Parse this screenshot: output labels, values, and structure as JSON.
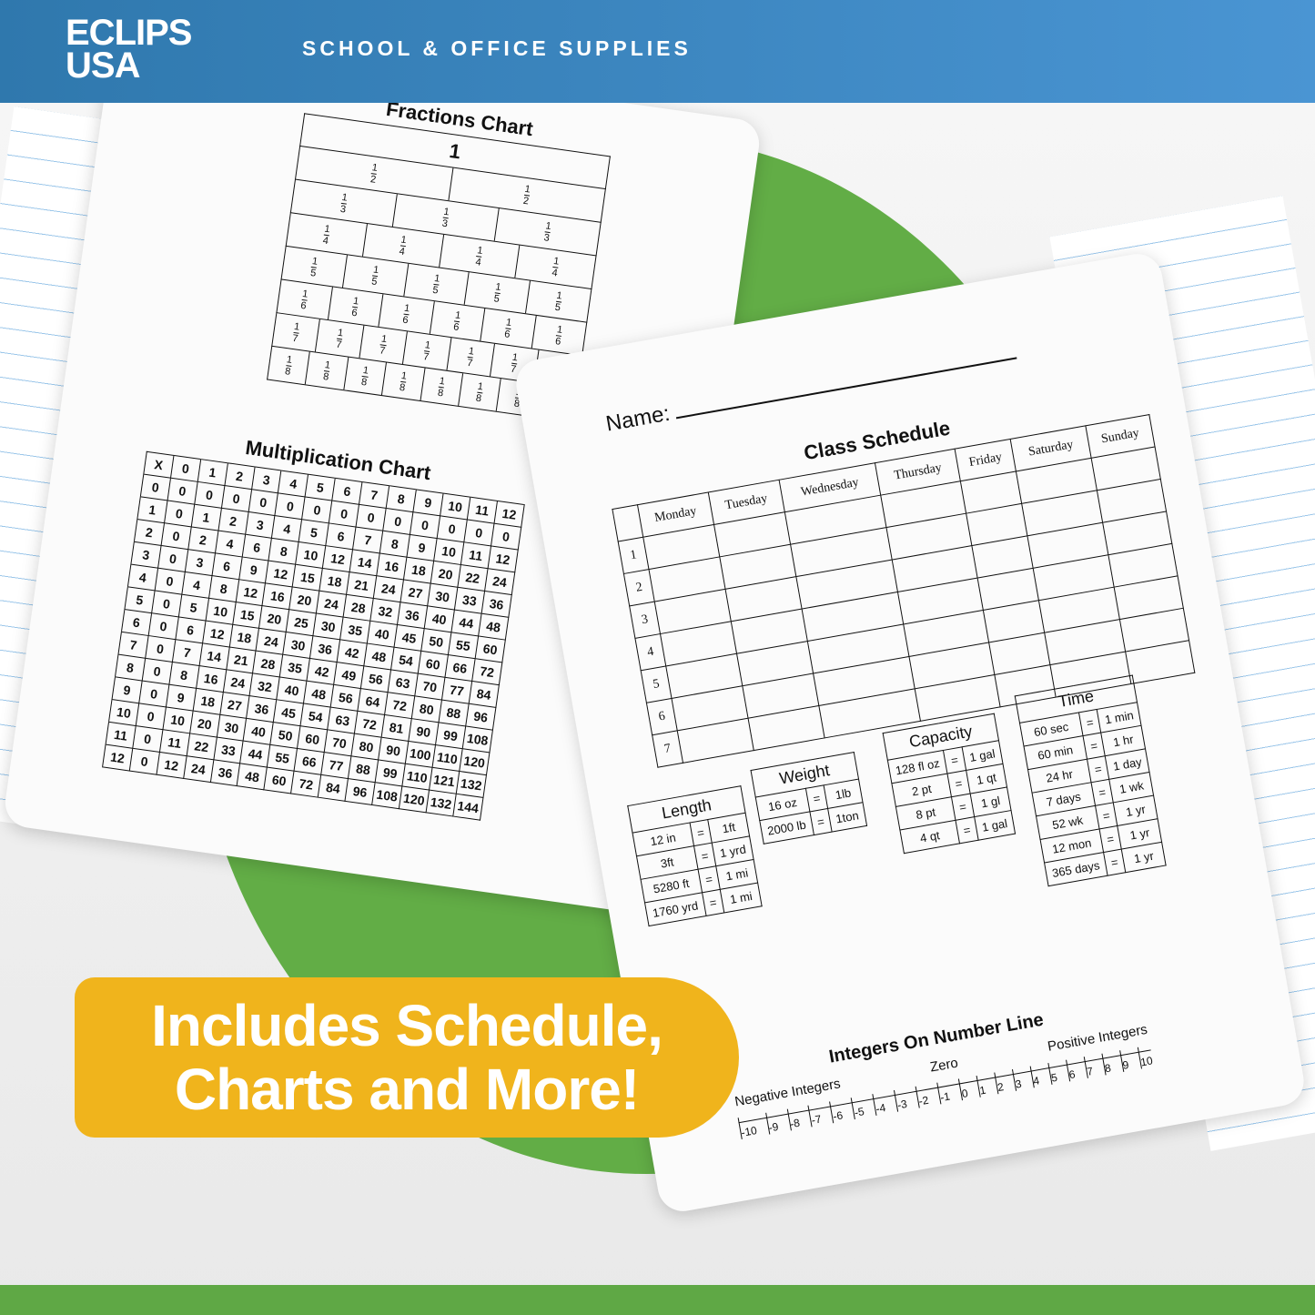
{
  "header": {
    "logo_line1": "ECLIPS",
    "logo_line2": "USA",
    "tagline": "SCHOOL & OFFICE SUPPLIES",
    "color": "#3a86c2"
  },
  "colors": {
    "green": "#62ad46",
    "yellow": "#f0b41c"
  },
  "fractions": {
    "title": "Fractions Chart",
    "whole": "1",
    "denominators": [
      2,
      3,
      4,
      5,
      6,
      7,
      8
    ]
  },
  "multiplication": {
    "title": "Multiplication Chart",
    "corner": "X",
    "range": [
      0,
      12
    ]
  },
  "name_label": "Name:",
  "schedule": {
    "title": "Class Schedule",
    "days": [
      "Monday",
      "Tuesday",
      "Wednesday",
      "Thursday",
      "Friday",
      "Saturday",
      "Sunday"
    ],
    "periods": [
      "1",
      "2",
      "3",
      "4",
      "5",
      "6",
      "7"
    ]
  },
  "conversions": [
    {
      "title": "Length",
      "rows": [
        [
          "12 in",
          "=",
          "1ft"
        ],
        [
          "3ft",
          "=",
          "1 yrd"
        ],
        [
          "5280 ft",
          "=",
          "1 mi"
        ],
        [
          "1760 yrd",
          "=",
          "1 mi"
        ]
      ]
    },
    {
      "title": "Weight",
      "rows": [
        [
          "16 oz",
          "=",
          "1lb"
        ],
        [
          "2000 lb",
          "=",
          "1ton"
        ]
      ]
    },
    {
      "title": "Capacity",
      "rows": [
        [
          "128 fl oz",
          "=",
          "1 gal"
        ],
        [
          "2 pt",
          "=",
          "1 qt"
        ],
        [
          "8 pt",
          "=",
          "1 gl"
        ],
        [
          "4 qt",
          "=",
          "1 gal"
        ]
      ]
    },
    {
      "title": "Time",
      "rows": [
        [
          "60 sec",
          "=",
          "1 min"
        ],
        [
          "60 min",
          "=",
          "1 hr"
        ],
        [
          "24 hr",
          "=",
          "1 day"
        ],
        [
          "7 days",
          "=",
          "1 wk"
        ],
        [
          "52 wk",
          "=",
          "1 yr"
        ],
        [
          "12 mon",
          "=",
          "1 yr"
        ],
        [
          "365 days",
          "=",
          "1 yr"
        ]
      ]
    }
  ],
  "number_line": {
    "title": "Integers On Number Line",
    "negative": "Negative Integers",
    "zero": "Zero",
    "positive": "Positive Integers",
    "range": [
      -10,
      10
    ]
  },
  "banner": {
    "line1": "Includes Schedule,",
    "line2": "Charts and More!"
  }
}
